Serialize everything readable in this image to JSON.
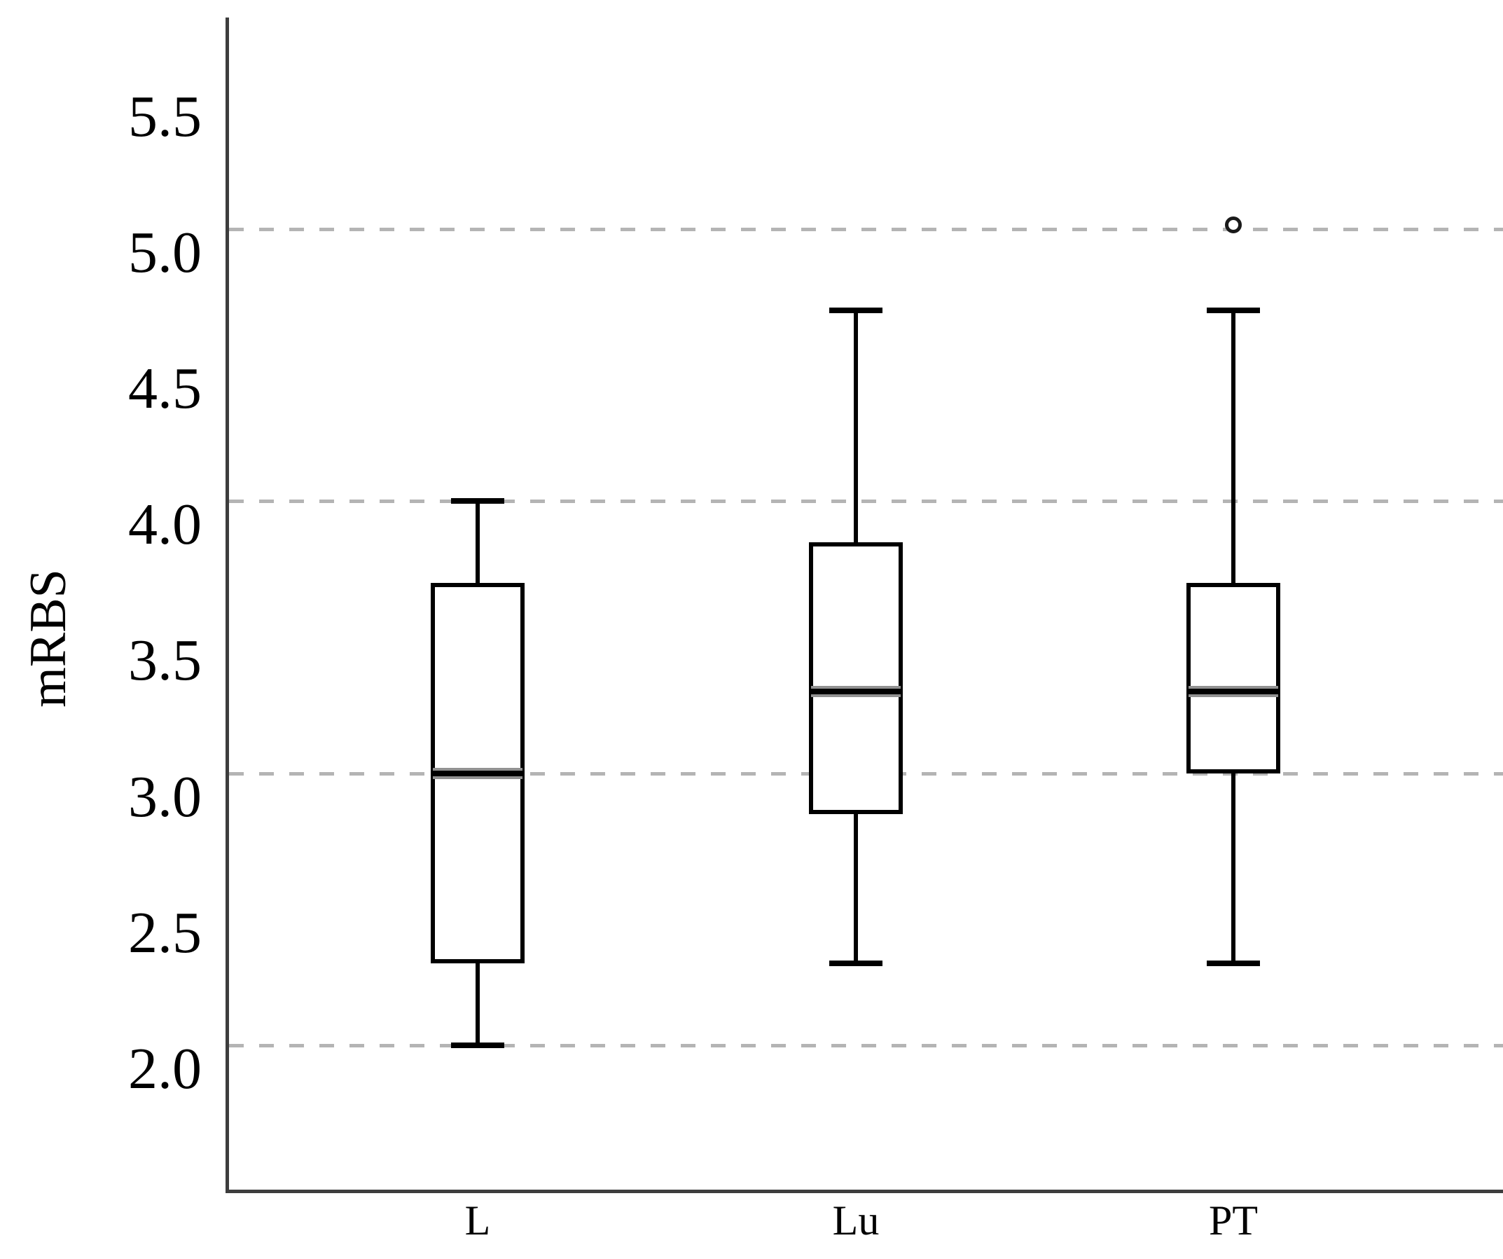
{
  "figure": {
    "kind": "statistical box plot figure",
    "background_color": "#ffffff"
  },
  "chart_data": {
    "type": "boxplot",
    "title": "",
    "xlabel": "",
    "ylabel": "mRBS",
    "categories": [
      "L",
      "Lu",
      "PT"
    ],
    "y_ticks": [
      {
        "value": 5.5,
        "label": "5.5"
      },
      {
        "value": 5.0,
        "label": "5.0"
      },
      {
        "value": 4.5,
        "label": "4.5"
      },
      {
        "value": 4.0,
        "label": "4.0"
      },
      {
        "value": 3.5,
        "label": "3.5"
      },
      {
        "value": 3.0,
        "label": "3.0"
      },
      {
        "value": 2.5,
        "label": "2.5"
      },
      {
        "value": 2.0,
        "label": "2.0"
      }
    ],
    "gridlines_at": [
      5.0,
      4.0,
      3.0,
      2.0
    ],
    "grid_style": "dashed",
    "legend": "none",
    "ylim": [
      1.47,
      5.78
    ],
    "series": [
      {
        "category": "L",
        "whisker_low": 2.0,
        "q1": 2.3,
        "median": 3.0,
        "q3": 3.7,
        "whisker_high": 4.0,
        "outliers": []
      },
      {
        "category": "Lu",
        "whisker_low": 2.3,
        "q1": 2.85,
        "median": 3.3,
        "q3": 3.85,
        "whisker_high": 4.7,
        "outliers": []
      },
      {
        "category": "PT",
        "whisker_low": 2.3,
        "q1": 3.0,
        "median": 3.3,
        "q3": 3.7,
        "whisker_high": 4.7,
        "outliers": [
          5.0
        ]
      }
    ],
    "colors": {
      "box_border": "#000000",
      "median_line": "#000000",
      "median_halo": "#919191",
      "gridline": "#b4b4b4",
      "axis_line": "#3d3d3d",
      "background": "#ffffff",
      "box_fill": "#ffffff"
    }
  }
}
